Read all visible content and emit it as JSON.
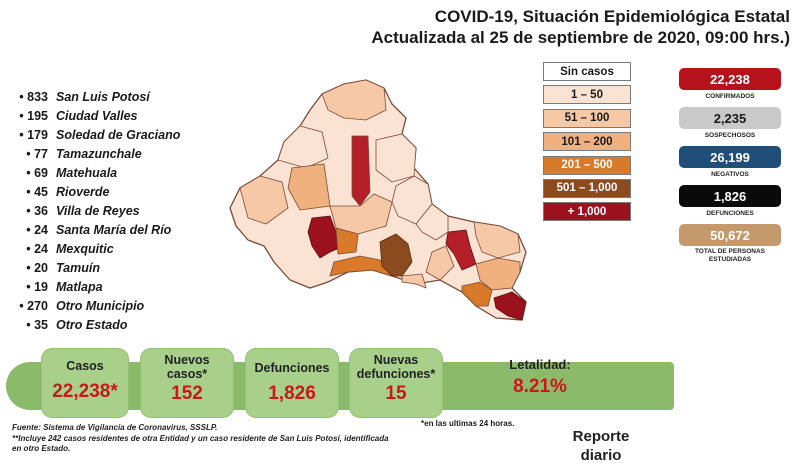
{
  "header": {
    "title_line1": "COVID-19, Situación Epidemiológica Estatal",
    "title_line2": "Actualizada al 25 de septiembre de 2020, 09:00 hrs.)"
  },
  "municipalities": [
    {
      "count": "833",
      "name": "San Luis Potosí"
    },
    {
      "count": "195",
      "name": "Ciudad Valles"
    },
    {
      "count": "179",
      "name": "Soledad de Graciano"
    },
    {
      "count": "77",
      "name": "Tamazunchale"
    },
    {
      "count": "69",
      "name": "Matehuala"
    },
    {
      "count": "45",
      "name": "Rioverde"
    },
    {
      "count": "36",
      "name": "Villa de Reyes"
    },
    {
      "count": "24",
      "name": "Santa María del Río"
    },
    {
      "count": "24",
      "name": "Mexquitic"
    },
    {
      "count": "20",
      "name": "Tamuín"
    },
    {
      "count": "19",
      "name": "Matlapa"
    },
    {
      "count": "270",
      "name": "Otro Municipio"
    },
    {
      "count": "35",
      "name": "Otro Estado"
    }
  ],
  "legend": [
    {
      "label": "Sin casos",
      "color": "#ffffff",
      "text_color": "#1a1a1a"
    },
    {
      "label": "1 – 50",
      "color": "#fbe3d3",
      "text_color": "#1a1a1a"
    },
    {
      "label": "51 – 100",
      "color": "#f6c8a6",
      "text_color": "#1a1a1a"
    },
    {
      "label": "101 – 200",
      "color": "#f0b17e",
      "text_color": "#1a1a1a"
    },
    {
      "label": "201 – 500",
      "color": "#d97a2a",
      "text_color": "#ffffff"
    },
    {
      "label": "501 – 1,000",
      "color": "#8c4a1f",
      "text_color": "#ffffff"
    },
    {
      "label": "+ 1,000",
      "color": "#9b111e",
      "text_color": "#ffffff"
    }
  ],
  "stats": [
    {
      "value": "22,238",
      "label": "CONFIRMADOS",
      "color": "#b5121b",
      "text_color": "#ffffff"
    },
    {
      "value": "2,235",
      "label": "SOSPECHOSOS",
      "color": "#c9c9c9",
      "text_color": "#1a1a1a"
    },
    {
      "value": "26,199",
      "label": "NEGATIVOS",
      "color": "#1f4e79",
      "text_color": "#ffffff"
    },
    {
      "value": "1,826",
      "label": "DEFUNCIONES",
      "color": "#0a0a0a",
      "text_color": "#ffffff"
    },
    {
      "value": "50,672",
      "label": "TOTAL DE PERSONAS ESTUDIADAS",
      "color": "#c49a6c",
      "text_color": "#ffffff"
    }
  ],
  "summary": {
    "casos_label": "Casos",
    "casos_value": "22,238*",
    "nuevos_casos_label": "Nuevos casos*",
    "nuevos_casos_value": "152",
    "defunciones_label": "Defunciones",
    "defunciones_value": "1,826",
    "nuevas_defunciones_label": "Nuevas defunciones*",
    "nuevas_defunciones_value": "15",
    "letalidad_label": "Letalidad:",
    "letalidad_value": "8.21%"
  },
  "footer": {
    "note_24h": "*en las ultimas 24 horas.",
    "source_line1": "Fuente: Sistema de Vigilancia de Coronavirus, SSSLP.",
    "source_line2": "**Incluye 242 casos residentes de otra Entidad y un caso residente de San Luis Potosí, identificada",
    "source_line3": "en otro Estado.",
    "report_line1": "Reporte",
    "report_line2": "diario"
  }
}
